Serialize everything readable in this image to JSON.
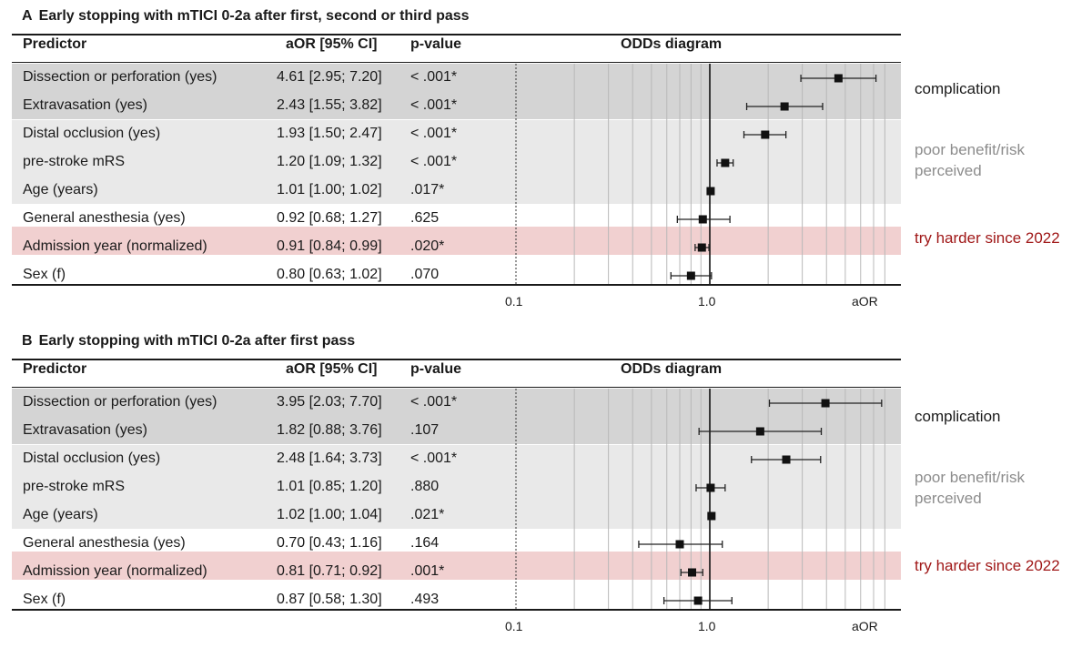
{
  "colors": {
    "dark_band": "#d4d4d4",
    "light_band": "#e9e9e9",
    "pink_band": "#f1d0d0",
    "highlight_text": "#a01818",
    "grey_text": "#8c8c8c"
  },
  "panels": [
    {
      "letter": "A",
      "title": "Early stopping with mTICI 0-2a after first, second or third pass",
      "headers": {
        "predictor": "Predictor",
        "aor": "aOR [95% CI]",
        "p": "p-value",
        "odds": "ODDs diagram"
      },
      "rows": [
        {
          "predictor": "Dissection or perforation (yes)",
          "aor": "4.61 [2.95; 7.20]",
          "p": "< .001*"
        },
        {
          "predictor": "Extravasation (yes)",
          "aor": "2.43 [1.55; 3.82]",
          "p": "< .001*"
        },
        {
          "predictor": "Distal occlusion (yes)",
          "aor": "1.93 [1.50; 2.47]",
          "p": "< .001*"
        },
        {
          "predictor": "pre-stroke mRS",
          "aor": "1.20 [1.09; 1.32]",
          "p": "< .001*"
        },
        {
          "predictor": "Age (years)",
          "aor": "1.01 [1.00; 1.02]",
          "p": ".017*"
        },
        {
          "predictor": "General anesthesia (yes)",
          "aor": "0.92 [0.68; 1.27]",
          "p": ".625"
        },
        {
          "predictor": "Admission year (normalized)",
          "aor": "0.91 [0.84; 0.99]",
          "p": ".020*"
        },
        {
          "predictor": "Sex (f)",
          "aor": "0.80 [0.63; 1.02]",
          "p": ".070"
        }
      ],
      "axis": {
        "tick_01": "0.1",
        "tick_1": "1.0",
        "label": "aOR"
      },
      "groups": {
        "complication": "complication",
        "benefit_line1": "poor benefit/risk",
        "benefit_line2": "perceived",
        "harder": "try harder since 2022"
      }
    },
    {
      "letter": "B",
      "title": "Early stopping with mTICI 0-2a after first pass",
      "headers": {
        "predictor": "Predictor",
        "aor": "aOR [95% CI]",
        "p": "p-value",
        "odds": "ODDs diagram"
      },
      "rows": [
        {
          "predictor": "Dissection or perforation (yes)",
          "aor": "3.95 [2.03; 7.70]",
          "p": "< .001*"
        },
        {
          "predictor": "Extravasation (yes)",
          "aor": "1.82 [0.88; 3.76]",
          "p": ".107"
        },
        {
          "predictor": "Distal occlusion (yes)",
          "aor": "2.48 [1.64; 3.73]",
          "p": "< .001*"
        },
        {
          "predictor": "pre-stroke mRS",
          "aor": "1.01 [0.85; 1.20]",
          "p": ".880"
        },
        {
          "predictor": "Age (years)",
          "aor": "1.02 [1.00; 1.04]",
          "p": ".021*"
        },
        {
          "predictor": "General anesthesia (yes)",
          "aor": "0.70 [0.43; 1.16]",
          "p": ".164"
        },
        {
          "predictor": "Admission year (normalized)",
          "aor": "0.81 [0.71; 0.92]",
          "p": ".001*"
        },
        {
          "predictor": "Sex (f)",
          "aor": "0.87 [0.58; 1.30]",
          "p": ".493"
        }
      ],
      "axis": {
        "tick_01": "0.1",
        "tick_1": "1.0",
        "label": "aOR"
      },
      "groups": {
        "complication": "complication",
        "benefit_line1": "poor benefit/risk",
        "benefit_line2": "perceived",
        "harder": "try harder since 2022"
      }
    }
  ],
  "chart_data": [
    {
      "type": "forest",
      "title": "Early stopping with mTICI 0-2a after first, second or third pass",
      "xlabel": "aOR",
      "xscale": "log",
      "xlim": [
        0.1,
        7.2
      ],
      "reference_line": 1.0,
      "categories": [
        "Dissection or perforation (yes)",
        "Extravasation (yes)",
        "Distal occlusion (yes)",
        "pre-stroke mRS",
        "Age (years)",
        "General anesthesia (yes)",
        "Admission year (normalized)",
        "Sex (f)"
      ],
      "estimates": [
        4.61,
        2.43,
        1.93,
        1.2,
        1.01,
        0.92,
        0.91,
        0.8
      ],
      "ci_low": [
        2.95,
        1.55,
        1.5,
        1.09,
        1.0,
        0.68,
        0.84,
        0.63
      ],
      "ci_high": [
        7.2,
        3.82,
        2.47,
        1.32,
        1.02,
        1.27,
        0.99,
        1.02
      ]
    },
    {
      "type": "forest",
      "title": "Early stopping with mTICI 0-2a after first pass",
      "xlabel": "aOR",
      "xscale": "log",
      "xlim": [
        0.1,
        7.7
      ],
      "reference_line": 1.0,
      "categories": [
        "Dissection or perforation (yes)",
        "Extravasation (yes)",
        "Distal occlusion (yes)",
        "pre-stroke mRS",
        "Age (years)",
        "General anesthesia (yes)",
        "Admission year (normalized)",
        "Sex (f)"
      ],
      "estimates": [
        3.95,
        1.82,
        2.48,
        1.01,
        1.02,
        0.7,
        0.81,
        0.87
      ],
      "ci_low": [
        2.03,
        0.88,
        1.64,
        0.85,
        1.0,
        0.43,
        0.71,
        0.58
      ],
      "ci_high": [
        7.7,
        3.76,
        3.73,
        1.2,
        1.04,
        1.16,
        0.92,
        1.3
      ]
    }
  ]
}
